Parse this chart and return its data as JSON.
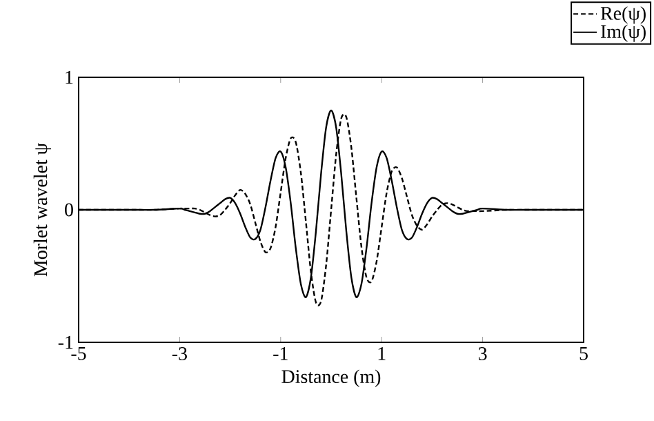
{
  "chart_data": {
    "type": "line",
    "xlabel": "Distance (m)",
    "ylabel": "Morlet wavelet ψ",
    "xlim": [
      -5,
      5
    ],
    "xticks": [
      -5,
      -3,
      -1,
      1,
      3,
      5
    ],
    "ylim": [
      -1,
      1
    ],
    "yticks": [
      -1,
      0,
      1
    ],
    "legend": "top right",
    "grid": false,
    "x": [
      -5,
      -4,
      -3.5,
      -3,
      -2.9,
      -2.8,
      -2.7,
      -2.6,
      -2.5,
      -2.4,
      -2.3,
      -2.2,
      -2.1,
      -2,
      -1.9,
      -1.8,
      -1.7,
      -1.6,
      -1.5,
      -1.4,
      -1.3,
      -1.2,
      -1.1,
      -1,
      -0.9,
      -0.8,
      -0.7,
      -0.6,
      -0.5,
      -0.4,
      -0.3,
      -0.2,
      -0.1,
      0,
      0.1,
      0.2,
      0.3,
      0.4,
      0.5,
      0.6,
      0.7,
      0.8,
      0.9,
      1,
      1.1,
      1.2,
      1.3,
      1.4,
      1.5,
      1.6,
      1.7,
      1.8,
      1.9,
      2,
      2.1,
      2.2,
      2.3,
      2.4,
      2.5,
      2.6,
      2.7,
      2.8,
      2.9,
      3,
      3.5,
      4,
      5
    ],
    "series": [
      {
        "name": "Re(ψ)",
        "color": "#000000",
        "line_style": "dashed",
        "values": [
          0,
          0,
          0,
          0.01,
          0.01,
          0.01,
          0.01,
          0,
          -0.02,
          -0.04,
          -0.05,
          -0.04,
          0,
          0.05,
          0.11,
          0.15,
          0.12,
          0.04,
          -0.1,
          -0.24,
          -0.32,
          -0.29,
          -0.13,
          0.13,
          0.39,
          0.54,
          0.51,
          0.28,
          -0.09,
          -0.47,
          -0.7,
          -0.69,
          -0.42,
          0,
          0.42,
          0.69,
          0.7,
          0.47,
          0.09,
          -0.28,
          -0.51,
          -0.54,
          -0.39,
          -0.13,
          0.13,
          0.29,
          0.32,
          0.24,
          0.1,
          -0.04,
          -0.12,
          -0.15,
          -0.11,
          -0.05,
          0,
          0.04,
          0.05,
          0.04,
          0.02,
          0,
          -0.01,
          -0.01,
          -0.01,
          -0.01,
          0,
          0,
          0
        ]
      },
      {
        "name": "Im(ψ)",
        "color": "#000000",
        "line_style": "solid",
        "values": [
          0,
          0,
          0,
          0.01,
          0,
          -0.01,
          -0.02,
          -0.03,
          -0.03,
          -0.01,
          0.02,
          0.05,
          0.08,
          0.09,
          0.05,
          -0.03,
          -0.13,
          -0.21,
          -0.22,
          -0.15,
          0.02,
          0.22,
          0.39,
          0.44,
          0.32,
          0.05,
          -0.29,
          -0.56,
          -0.66,
          -0.51,
          -0.16,
          0.27,
          0.62,
          0.75,
          0.62,
          0.27,
          -0.16,
          -0.51,
          -0.66,
          -0.56,
          -0.29,
          0.05,
          0.32,
          0.44,
          0.39,
          0.22,
          0.02,
          -0.15,
          -0.22,
          -0.21,
          -0.13,
          -0.03,
          0.05,
          0.09,
          0.08,
          0.05,
          0.02,
          -0.01,
          -0.03,
          -0.03,
          -0.02,
          -0.01,
          0,
          0.01,
          0,
          0,
          0
        ]
      }
    ]
  }
}
